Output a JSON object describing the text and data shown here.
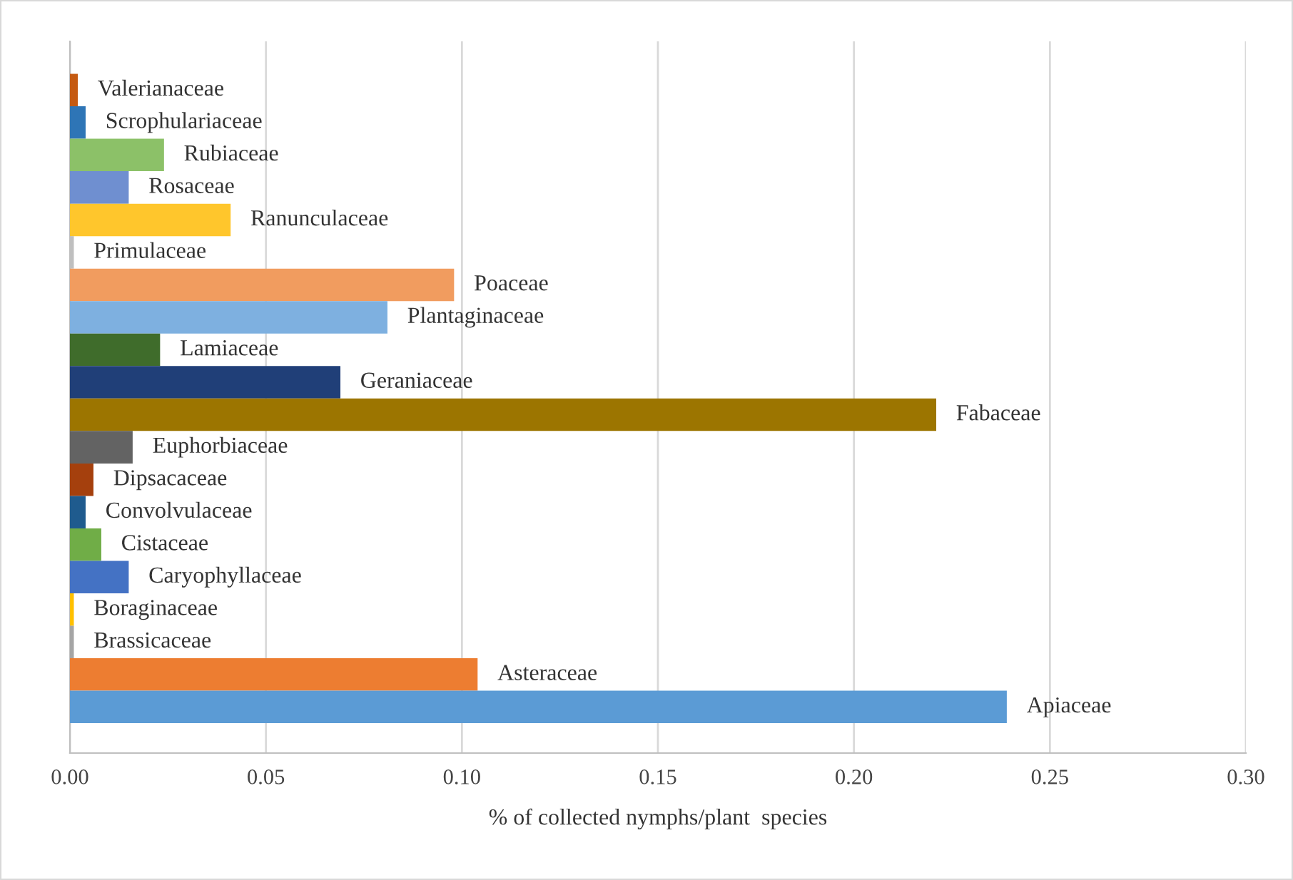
{
  "chart_data": {
    "type": "bar",
    "orientation": "horizontal",
    "xlabel": "% of collected nymphs/plant  species",
    "categories": [
      "Valerianaceae",
      "Scrophulariaceae",
      "Rubiaceae",
      "Rosaceae",
      "Ranunculaceae",
      "Primulaceae",
      "Poaceae",
      "Plantaginaceae",
      "Lamiaceae",
      "Geraniaceae",
      "Fabaceae",
      "Euphorbiaceae",
      "Dipsacaceae",
      "Convolvulaceae",
      "Cistaceae",
      "Caryophyllaceae",
      "Boraginaceae",
      "Brassicaceae",
      "Asteraceae",
      "Apiaceae"
    ],
    "values": [
      0.002,
      0.004,
      0.024,
      0.015,
      0.041,
      0.001,
      0.098,
      0.081,
      0.023,
      0.069,
      0.221,
      0.016,
      0.006,
      0.004,
      0.008,
      0.015,
      0.001,
      0.001,
      0.104,
      0.239
    ],
    "colors": [
      "#c55a11",
      "#2e75b6",
      "#8cc168",
      "#6f8fd0",
      "#ffc62c",
      "#bfbfbf",
      "#f19c5f",
      "#7eb0e0",
      "#3f6c2b",
      "#203f78",
      "#9c7500",
      "#636363",
      "#a5400d",
      "#1f5b8e",
      "#70ad47",
      "#4472c4",
      "#ffc000",
      "#a5a5a5",
      "#ed7d31",
      "#5b9bd5"
    ],
    "xlim": [
      0,
      0.3
    ],
    "xticks": [
      {
        "value": 0,
        "label": "0.00"
      },
      {
        "value": 0.05,
        "label": "0.05"
      },
      {
        "value": 0.1,
        "label": "0.10"
      },
      {
        "value": 0.15,
        "label": "0.15"
      },
      {
        "value": 0.2,
        "label": "0.20"
      },
      {
        "value": 0.25,
        "label": "0.25"
      },
      {
        "value": 0.3,
        "label": "0.30"
      }
    ],
    "grid": "x"
  }
}
